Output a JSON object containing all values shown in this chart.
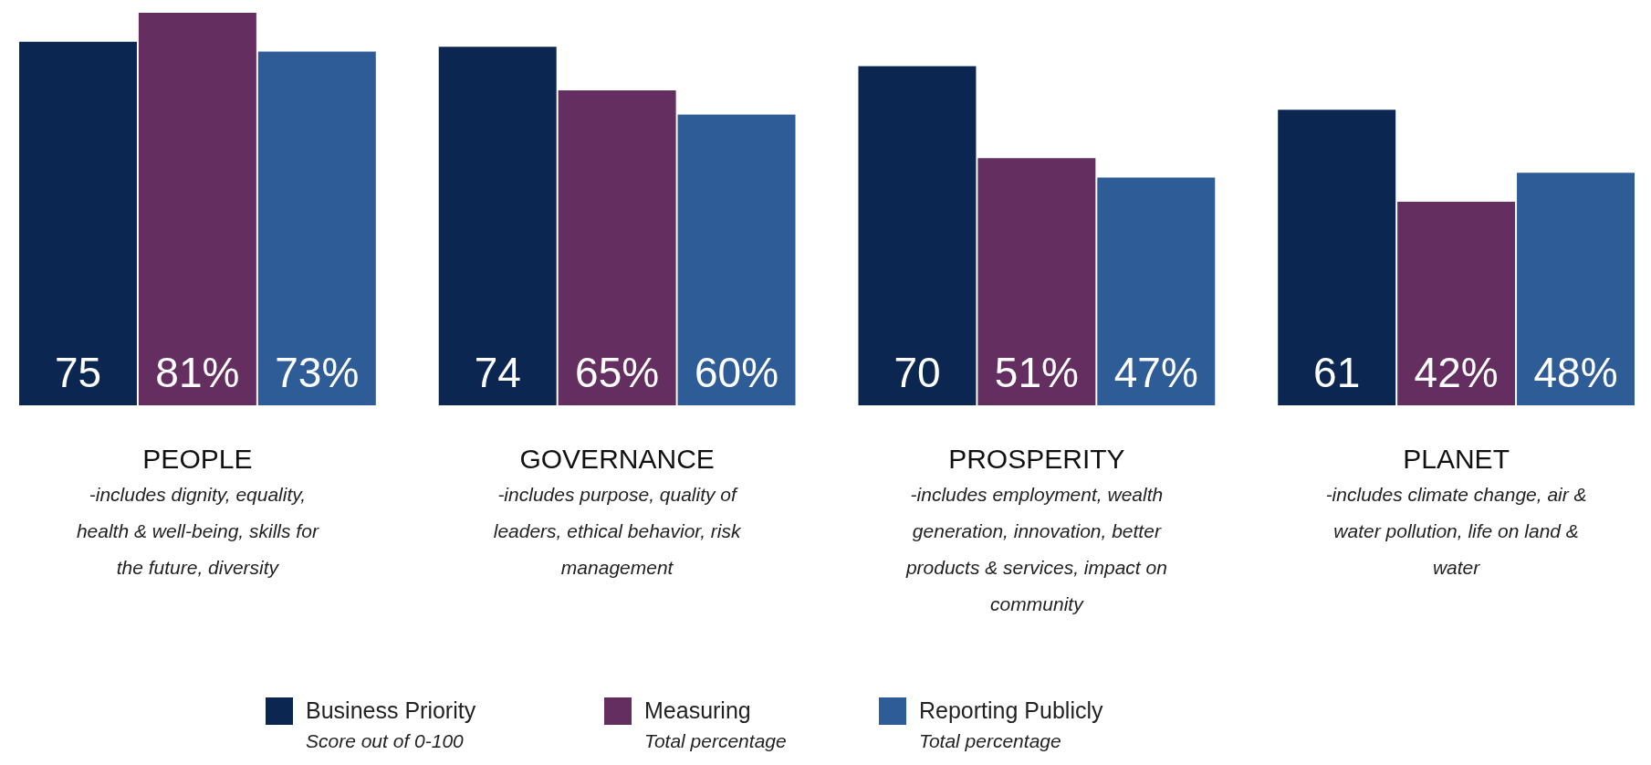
{
  "chart_data": {
    "type": "bar",
    "categories": [
      "PEOPLE",
      "GOVERNANCE",
      "PROSPERITY",
      "PLANET"
    ],
    "series": [
      {
        "name": "Business Priority",
        "color": "#0b2650",
        "values": [
          75,
          74,
          70,
          61
        ],
        "value_labels": [
          "75",
          "74",
          "70",
          "61"
        ]
      },
      {
        "name": "Measuring",
        "color": "#642e60",
        "values": [
          81,
          65,
          51,
          42
        ],
        "value_labels": [
          "81%",
          "65%",
          "51%",
          "42%"
        ]
      },
      {
        "name": "Reporting Publicly",
        "color": "#2e5c97",
        "values": [
          73,
          60,
          47,
          48
        ],
        "value_labels": [
          "73%",
          "60%",
          "47%",
          "48%"
        ]
      }
    ],
    "annotations": [
      "-includes dignity, equality, health & well-being, skills for the future, diversity",
      "-includes purpose, quality of leaders, ethical behavior, risk management",
      "-includes employment, wealth generation, innovation, better products & services, impact on community",
      "-includes climate change, air & water pollution, life on land & water",
      "Score out of 0-100",
      "Total percentage",
      "Total percentage"
    ],
    "legend": "bottom"
  }
}
